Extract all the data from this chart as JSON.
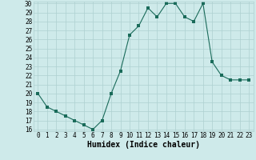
{
  "x": [
    0,
    1,
    2,
    3,
    4,
    5,
    6,
    7,
    8,
    9,
    10,
    11,
    12,
    13,
    14,
    15,
    16,
    17,
    18,
    19,
    20,
    21,
    22,
    23
  ],
  "y": [
    20,
    18.5,
    18,
    17.5,
    17,
    16.5,
    16,
    17,
    20,
    22.5,
    26.5,
    27.5,
    29.5,
    28.5,
    30,
    30,
    28.5,
    28,
    30,
    23.5,
    22,
    21.5,
    21.5,
    21.5
  ],
  "xlabel": "Humidex (Indice chaleur)",
  "ylim": [
    16,
    30
  ],
  "xlim": [
    -0.5,
    23.5
  ],
  "yticks": [
    16,
    17,
    18,
    19,
    20,
    21,
    22,
    23,
    24,
    25,
    26,
    27,
    28,
    29,
    30
  ],
  "xticks": [
    0,
    1,
    2,
    3,
    4,
    5,
    6,
    7,
    8,
    9,
    10,
    11,
    12,
    13,
    14,
    15,
    16,
    17,
    18,
    19,
    20,
    21,
    22,
    23
  ],
  "line_color": "#1a6b5a",
  "marker_size": 2.5,
  "bg_color": "#ceeaea",
  "grid_color": "#aed0d0",
  "xlabel_fontsize": 7,
  "tick_fontsize": 5.5
}
